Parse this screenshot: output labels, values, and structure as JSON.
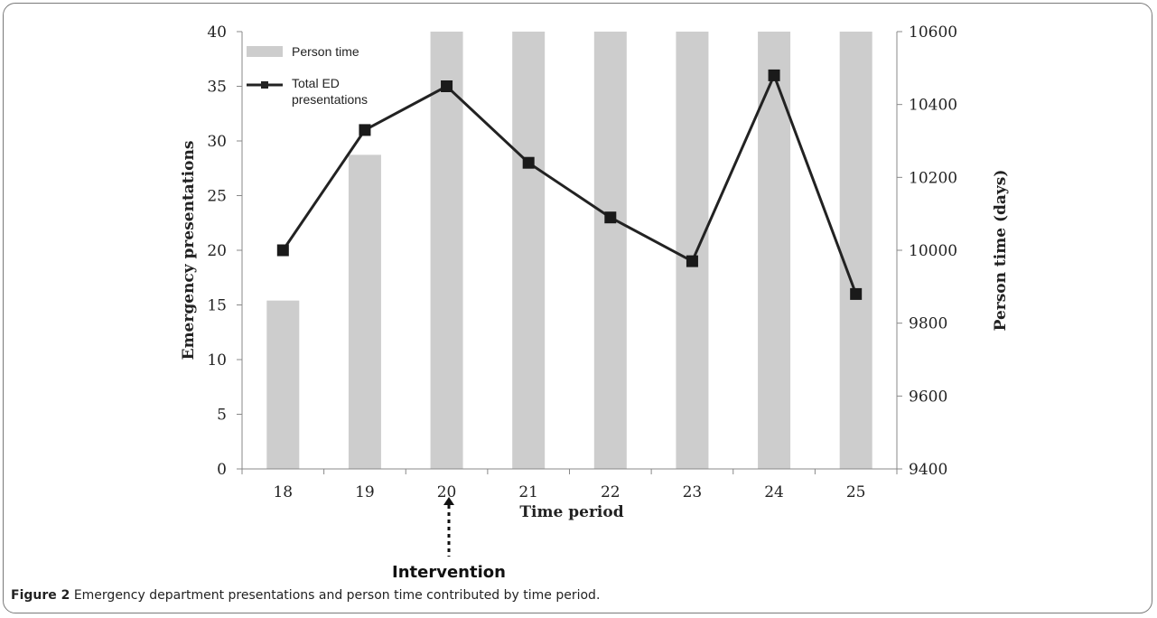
{
  "chart_data": {
    "type": "bar",
    "categories": [
      "18",
      "19",
      "20",
      "21",
      "22",
      "23",
      "24",
      "25"
    ],
    "series": [
      {
        "name": "Person time",
        "type": "bar",
        "axis": "right",
        "values": [
          9862,
          10262,
          10600,
          10600,
          10600,
          10600,
          10600,
          10600
        ],
        "color": "#cdcdcd"
      },
      {
        "name": "Total ED presentations",
        "type": "line",
        "axis": "left",
        "values": [
          20,
          31,
          35,
          28,
          23,
          19,
          36,
          16
        ],
        "color": "#222222"
      }
    ],
    "xlabel": "Time period",
    "ylabel": "Emergency presentations",
    "y2label": "Person time (days)",
    "ylim": [
      0,
      40
    ],
    "y2lim": [
      9400,
      10600
    ],
    "yticks": [
      "0",
      "5",
      "10",
      "15",
      "20",
      "25",
      "30",
      "35",
      "40"
    ],
    "y2ticks": [
      "9400",
      "9600",
      "9800",
      "10000",
      "10200",
      "10400",
      "10600"
    ],
    "legend_position": "top-left",
    "grid": false,
    "annotation": {
      "text": "Intervention",
      "category": "20"
    }
  },
  "legend": {
    "bar_label": "Person time",
    "line_label_1": "Total ED",
    "line_label_2": "presentations"
  },
  "caption": {
    "prefix": "Figure 2",
    "text": " Emergency department presentations and person time contributed by time period."
  }
}
